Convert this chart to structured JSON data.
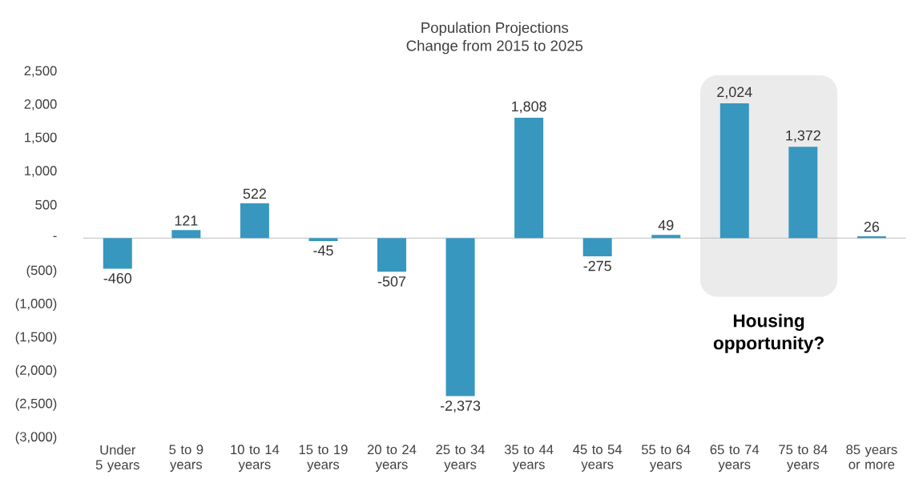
{
  "chart_data": {
    "type": "bar",
    "title": "Population Projections",
    "subtitle": "Change from 2015 to 2025",
    "categories": [
      "Under 5 years",
      "5 to 9 years",
      "10 to 14 years",
      "15 to 19 years",
      "20 to 24 years",
      "25 to 34 years",
      "35 to 44 years",
      "45 to 54 years",
      "55 to 64 years",
      "65 to 74 years",
      "75 to 84 years",
      "85 years or more"
    ],
    "values": [
      -460,
      121,
      522,
      -45,
      -507,
      -2373,
      1808,
      -275,
      49,
      2024,
      1372,
      26
    ],
    "value_labels": [
      "-460",
      "121",
      "522",
      "-45",
      "-507",
      "-2,373",
      "1,808",
      "-275",
      "49",
      "2,024",
      "1,372",
      "26"
    ],
    "color": "#3897bf",
    "ylim": [
      -3000,
      2500
    ],
    "yticks": [
      {
        "value": 2500,
        "label": "2,500"
      },
      {
        "value": 2000,
        "label": "2,000"
      },
      {
        "value": 1500,
        "label": "1,500"
      },
      {
        "value": 1000,
        "label": "1,000"
      },
      {
        "value": 500,
        "label": "500"
      },
      {
        "value": 0,
        "label": "-"
      },
      {
        "value": -500,
        "label": "(500)"
      },
      {
        "value": -1000,
        "label": "(1,000)"
      },
      {
        "value": -1500,
        "label": "(1,500)"
      },
      {
        "value": -2000,
        "label": "(2,000)"
      },
      {
        "value": -2500,
        "label": "(2,500)"
      },
      {
        "value": -3000,
        "label": "(3,000)"
      }
    ],
    "bands": [
      {
        "axis": "x",
        "from": "65 to 74 years",
        "to": "75 to 84 years",
        "label": "Housing opportunity?",
        "color": "#ebebeb"
      }
    ]
  }
}
